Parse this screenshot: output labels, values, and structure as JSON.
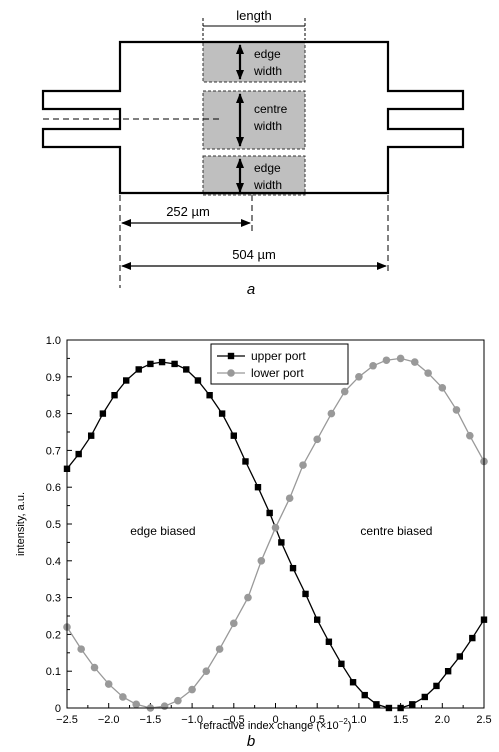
{
  "diagram": {
    "length_label": "length",
    "edge_width_line1": "edge",
    "edge_width_line2": "width",
    "centre_width_line1": "centre",
    "centre_width_line2": "width",
    "dim_half": "252 µm",
    "dim_full": "504 µm",
    "caption": "a",
    "region_fill": "#bfbfbf"
  },
  "chart_caption": "b",
  "chart_data": {
    "type": "line",
    "title": "",
    "xlabel": "refractive index change (×10",
    "xlabel_exponent": "−2",
    "xlabel_close": ")",
    "ylabel": "intensity, a.u.",
    "xlim": [
      -2.5,
      2.5
    ],
    "ylim": [
      0.0,
      1.0
    ],
    "x_ticks": [
      "−2.5",
      "−2.0",
      "−1.5",
      "−1.0",
      "−0.5",
      "0",
      "0.5",
      "1.0",
      "1.5",
      "2.0",
      "2.5"
    ],
    "y_ticks": [
      "0",
      "0.1",
      "0.2",
      "0.3",
      "0.4",
      "0.5",
      "0.6",
      "0.7",
      "0.8",
      "0.9",
      "1.0"
    ],
    "legend_position": "top-center",
    "annotations": [
      "edge biased",
      "centre biased"
    ],
    "series": [
      {
        "name": "upper port",
        "color": "#000000",
        "marker": "square",
        "x": [
          -2.5,
          -2.36,
          -2.21,
          -2.07,
          -1.93,
          -1.79,
          -1.64,
          -1.5,
          -1.36,
          -1.21,
          -1.07,
          -0.93,
          -0.79,
          -0.64,
          -0.5,
          -0.36,
          -0.21,
          -0.07,
          0.07,
          0.21,
          0.36,
          0.5,
          0.64,
          0.79,
          0.93,
          1.07,
          1.21,
          1.36,
          1.5,
          1.64,
          1.79,
          1.93,
          2.07,
          2.21,
          2.36,
          2.5
        ],
        "y": [
          0.65,
          0.69,
          0.74,
          0.8,
          0.85,
          0.89,
          0.92,
          0.935,
          0.94,
          0.935,
          0.92,
          0.89,
          0.85,
          0.8,
          0.74,
          0.67,
          0.6,
          0.53,
          0.45,
          0.38,
          0.31,
          0.24,
          0.18,
          0.12,
          0.07,
          0.035,
          0.01,
          0.0,
          0.0,
          0.01,
          0.03,
          0.06,
          0.1,
          0.14,
          0.19,
          0.24
        ]
      },
      {
        "name": "lower port",
        "color": "#999999",
        "marker": "circle",
        "x": [
          -2.5,
          -2.33,
          -2.17,
          -2.0,
          -1.83,
          -1.67,
          -1.5,
          -1.33,
          -1.17,
          -1.0,
          -0.83,
          -0.67,
          -0.5,
          -0.33,
          -0.17,
          0.0,
          0.17,
          0.33,
          0.5,
          0.67,
          0.83,
          1.0,
          1.17,
          1.33,
          1.5,
          1.67,
          1.83,
          2.0,
          2.17,
          2.33,
          2.5
        ],
        "y": [
          0.22,
          0.16,
          0.11,
          0.065,
          0.03,
          0.01,
          0.0,
          0.005,
          0.02,
          0.05,
          0.1,
          0.16,
          0.23,
          0.3,
          0.4,
          0.49,
          0.57,
          0.66,
          0.73,
          0.8,
          0.86,
          0.9,
          0.93,
          0.945,
          0.95,
          0.94,
          0.91,
          0.87,
          0.81,
          0.74,
          0.67
        ]
      }
    ]
  }
}
